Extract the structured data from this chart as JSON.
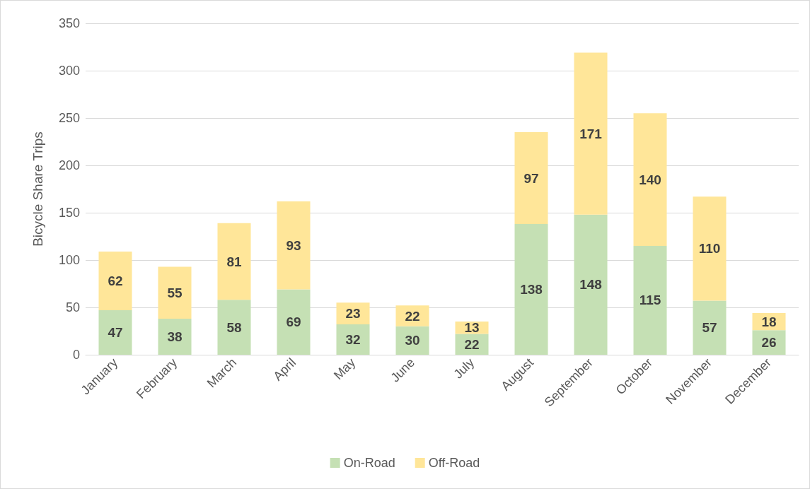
{
  "chart_data": {
    "type": "bar",
    "stacked": true,
    "ylabel": "Bicycle Share Trips",
    "categories": [
      "January",
      "February",
      "March",
      "April",
      "May",
      "June",
      "July",
      "August",
      "September",
      "October",
      "November",
      "December"
    ],
    "series": [
      {
        "name": "On-Road",
        "color": "#c5e0b4",
        "values": [
          47,
          38,
          58,
          69,
          32,
          30,
          22,
          138,
          148,
          115,
          57,
          26
        ]
      },
      {
        "name": "Off-Road",
        "color": "#ffe699",
        "values": [
          62,
          55,
          81,
          93,
          23,
          22,
          13,
          97,
          171,
          140,
          110,
          18
        ]
      }
    ],
    "ylim": [
      0,
      350
    ],
    "yticks": [
      0,
      50,
      100,
      150,
      200,
      250,
      300,
      350
    ],
    "grid": "y",
    "legend": "bottom",
    "data_labels": true
  }
}
